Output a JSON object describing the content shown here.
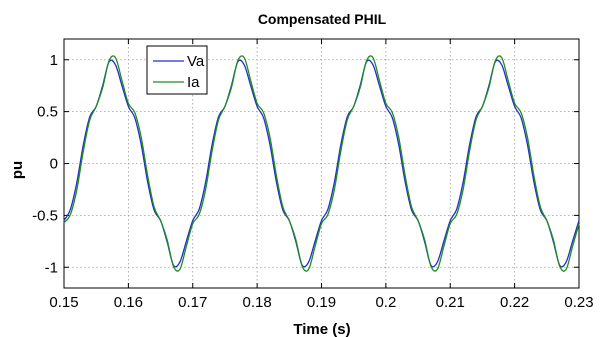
{
  "chart_data": {
    "type": "line",
    "title": "Compensated PHIL",
    "xlabel": "Time (s)",
    "ylabel": "pu",
    "xlim": [
      0.15,
      0.23
    ],
    "ylim": [
      -1.2,
      1.2
    ],
    "xticks": [
      0.15,
      0.16,
      0.17,
      0.18,
      0.19,
      0.2,
      0.21,
      0.22,
      0.23
    ],
    "xtick_labels": [
      "0.15",
      "0.16",
      "0.17",
      "0.18",
      "0.19",
      "0.2",
      "0.21",
      "0.22",
      "0.23"
    ],
    "yticks": [
      1,
      0.5,
      0,
      -0.5,
      -1
    ],
    "ytick_labels": [
      "1",
      "0.5",
      "0",
      "-0.5",
      "-1"
    ],
    "grid": true,
    "legend_position": "top-left",
    "series": [
      {
        "name": "Va",
        "color": "#1f2fd0",
        "x": [
          0.15,
          0.151,
          0.152,
          0.153,
          0.154,
          0.155,
          0.156,
          0.157,
          0.158,
          0.159,
          0.16,
          0.161,
          0.162,
          0.163,
          0.164,
          0.165,
          0.166,
          0.167,
          0.168,
          0.169,
          0.17,
          0.171,
          0.172,
          0.173,
          0.174,
          0.175,
          0.176,
          0.177,
          0.178,
          0.179,
          0.18,
          0.181,
          0.182,
          0.183,
          0.184,
          0.185,
          0.186,
          0.187,
          0.188,
          0.189,
          0.19,
          0.191,
          0.192,
          0.193,
          0.194,
          0.195,
          0.196,
          0.197,
          0.198,
          0.199,
          0.2,
          0.201,
          0.202,
          0.203,
          0.204,
          0.205,
          0.206,
          0.207,
          0.208,
          0.209,
          0.21,
          0.211,
          0.212,
          0.213,
          0.214,
          0.215,
          0.216,
          0.217,
          0.218,
          0.219,
          0.22,
          0.221,
          0.222,
          0.223,
          0.224,
          0.225,
          0.226,
          0.227,
          0.228,
          0.229,
          0.23
        ],
        "y": [
          -0.55,
          -0.44,
          -0.18,
          0.18,
          0.45,
          0.55,
          0.75,
          0.98,
          0.95,
          0.75,
          0.55,
          0.44,
          0.18,
          -0.18,
          -0.45,
          -0.55,
          -0.75,
          -0.98,
          -0.95,
          -0.75,
          -0.55,
          -0.44,
          -0.18,
          0.18,
          0.45,
          0.55,
          0.75,
          0.98,
          0.95,
          0.75,
          0.55,
          0.44,
          0.18,
          -0.18,
          -0.45,
          -0.55,
          -0.75,
          -0.98,
          -0.95,
          -0.75,
          -0.55,
          -0.44,
          -0.18,
          0.18,
          0.45,
          0.55,
          0.75,
          0.98,
          0.95,
          0.75,
          0.55,
          0.44,
          0.18,
          -0.18,
          -0.45,
          -0.55,
          -0.75,
          -0.98,
          -0.95,
          -0.75,
          -0.55,
          -0.44,
          -0.18,
          0.18,
          0.45,
          0.55,
          0.75,
          0.98,
          0.95,
          0.75,
          0.55,
          0.44,
          0.18,
          -0.18,
          -0.45,
          -0.55,
          -0.75,
          -0.98,
          -0.95,
          -0.75,
          -0.55
        ]
      },
      {
        "name": "Ia",
        "color": "#1e8c1e",
        "x": [
          0.15,
          0.151,
          0.152,
          0.153,
          0.154,
          0.155,
          0.156,
          0.157,
          0.158,
          0.159,
          0.16,
          0.161,
          0.162,
          0.163,
          0.164,
          0.165,
          0.166,
          0.167,
          0.168,
          0.169,
          0.17,
          0.171,
          0.172,
          0.173,
          0.174,
          0.175,
          0.176,
          0.177,
          0.178,
          0.179,
          0.18,
          0.181,
          0.182,
          0.183,
          0.184,
          0.185,
          0.186,
          0.187,
          0.188,
          0.189,
          0.19,
          0.191,
          0.192,
          0.193,
          0.194,
          0.195,
          0.196,
          0.197,
          0.198,
          0.199,
          0.2,
          0.201,
          0.202,
          0.203,
          0.204,
          0.205,
          0.206,
          0.207,
          0.208,
          0.209,
          0.21,
          0.211,
          0.212,
          0.213,
          0.214,
          0.215,
          0.216,
          0.217,
          0.218,
          0.219,
          0.22,
          0.221,
          0.222,
          0.223,
          0.224,
          0.225,
          0.226,
          0.227,
          0.228,
          0.229,
          0.23
        ],
        "y": [
          -0.57,
          -0.49,
          -0.25,
          0.12,
          0.42,
          0.55,
          0.73,
          0.99,
          1.02,
          0.8,
          0.58,
          0.49,
          0.25,
          -0.12,
          -0.42,
          -0.55,
          -0.73,
          -0.99,
          -1.02,
          -0.8,
          -0.58,
          -0.49,
          -0.25,
          0.12,
          0.42,
          0.55,
          0.73,
          0.99,
          1.02,
          0.8,
          0.58,
          0.49,
          0.25,
          -0.12,
          -0.42,
          -0.55,
          -0.73,
          -0.99,
          -1.02,
          -0.8,
          -0.58,
          -0.49,
          -0.25,
          0.12,
          0.42,
          0.55,
          0.73,
          0.99,
          1.02,
          0.8,
          0.58,
          0.49,
          0.25,
          -0.12,
          -0.42,
          -0.55,
          -0.73,
          -0.99,
          -1.02,
          -0.8,
          -0.58,
          -0.49,
          -0.25,
          0.12,
          0.42,
          0.55,
          0.73,
          0.99,
          1.02,
          0.8,
          0.58,
          0.49,
          0.25,
          -0.12,
          -0.42,
          -0.55,
          -0.73,
          -0.99,
          -1.02,
          -0.8,
          -0.58
        ]
      }
    ]
  }
}
